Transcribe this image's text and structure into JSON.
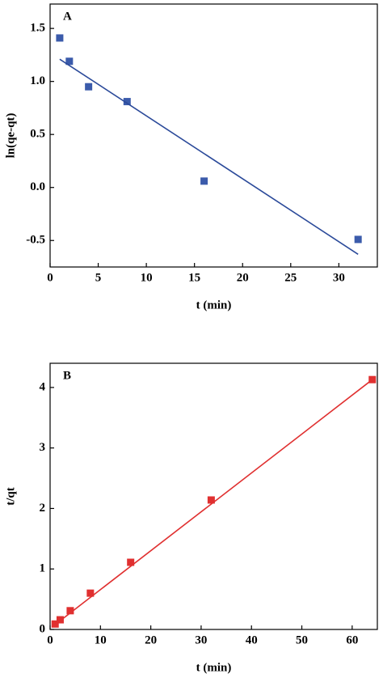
{
  "chart_data": [
    {
      "type": "scatter",
      "panel_label": "A",
      "x_label": "t (min)",
      "y_label": "ln(qe-qt)",
      "xlim": [
        0,
        34
      ],
      "ylim": [
        -0.75,
        1.73
      ],
      "xticks": [
        0,
        5,
        10,
        15,
        20,
        25,
        30
      ],
      "yticks": [
        {
          "value": -0.5,
          "label": "-0.5"
        },
        {
          "value": 0,
          "label": "0.0"
        },
        {
          "value": 0.5,
          "label": "0.5"
        },
        {
          "value": 1,
          "label": "1.0"
        },
        {
          "value": 1.5,
          "label": "1.5"
        }
      ],
      "series": [
        {
          "mode": "markers",
          "color": "#3b5bab",
          "x": [
            1,
            2,
            4,
            8,
            16,
            32
          ],
          "values": [
            1.41,
            1.19,
            0.95,
            0.81,
            0.06,
            -0.49
          ]
        },
        {
          "mode": "line",
          "color": "#2b4a9a",
          "x": [
            1,
            32
          ],
          "values": [
            1.21,
            -0.63
          ]
        }
      ]
    },
    {
      "type": "scatter",
      "panel_label": "B",
      "x_label": "t (min)",
      "y_label": "t/qt",
      "xlim": [
        0,
        65
      ],
      "ylim": [
        0,
        4.4
      ],
      "xticks": [
        0,
        10,
        20,
        30,
        40,
        50,
        60
      ],
      "yticks": [
        0,
        1,
        2,
        3,
        4
      ],
      "series": [
        {
          "mode": "markers",
          "color": "#e03030",
          "x": [
            1,
            2,
            4,
            8,
            16,
            32,
            64
          ],
          "values": [
            0.09,
            0.16,
            0.31,
            0.6,
            1.11,
            2.14,
            4.13
          ]
        },
        {
          "mode": "line",
          "color": "#e03030",
          "x": [
            1,
            64
          ],
          "values": [
            0.08,
            4.13
          ]
        }
      ]
    }
  ]
}
